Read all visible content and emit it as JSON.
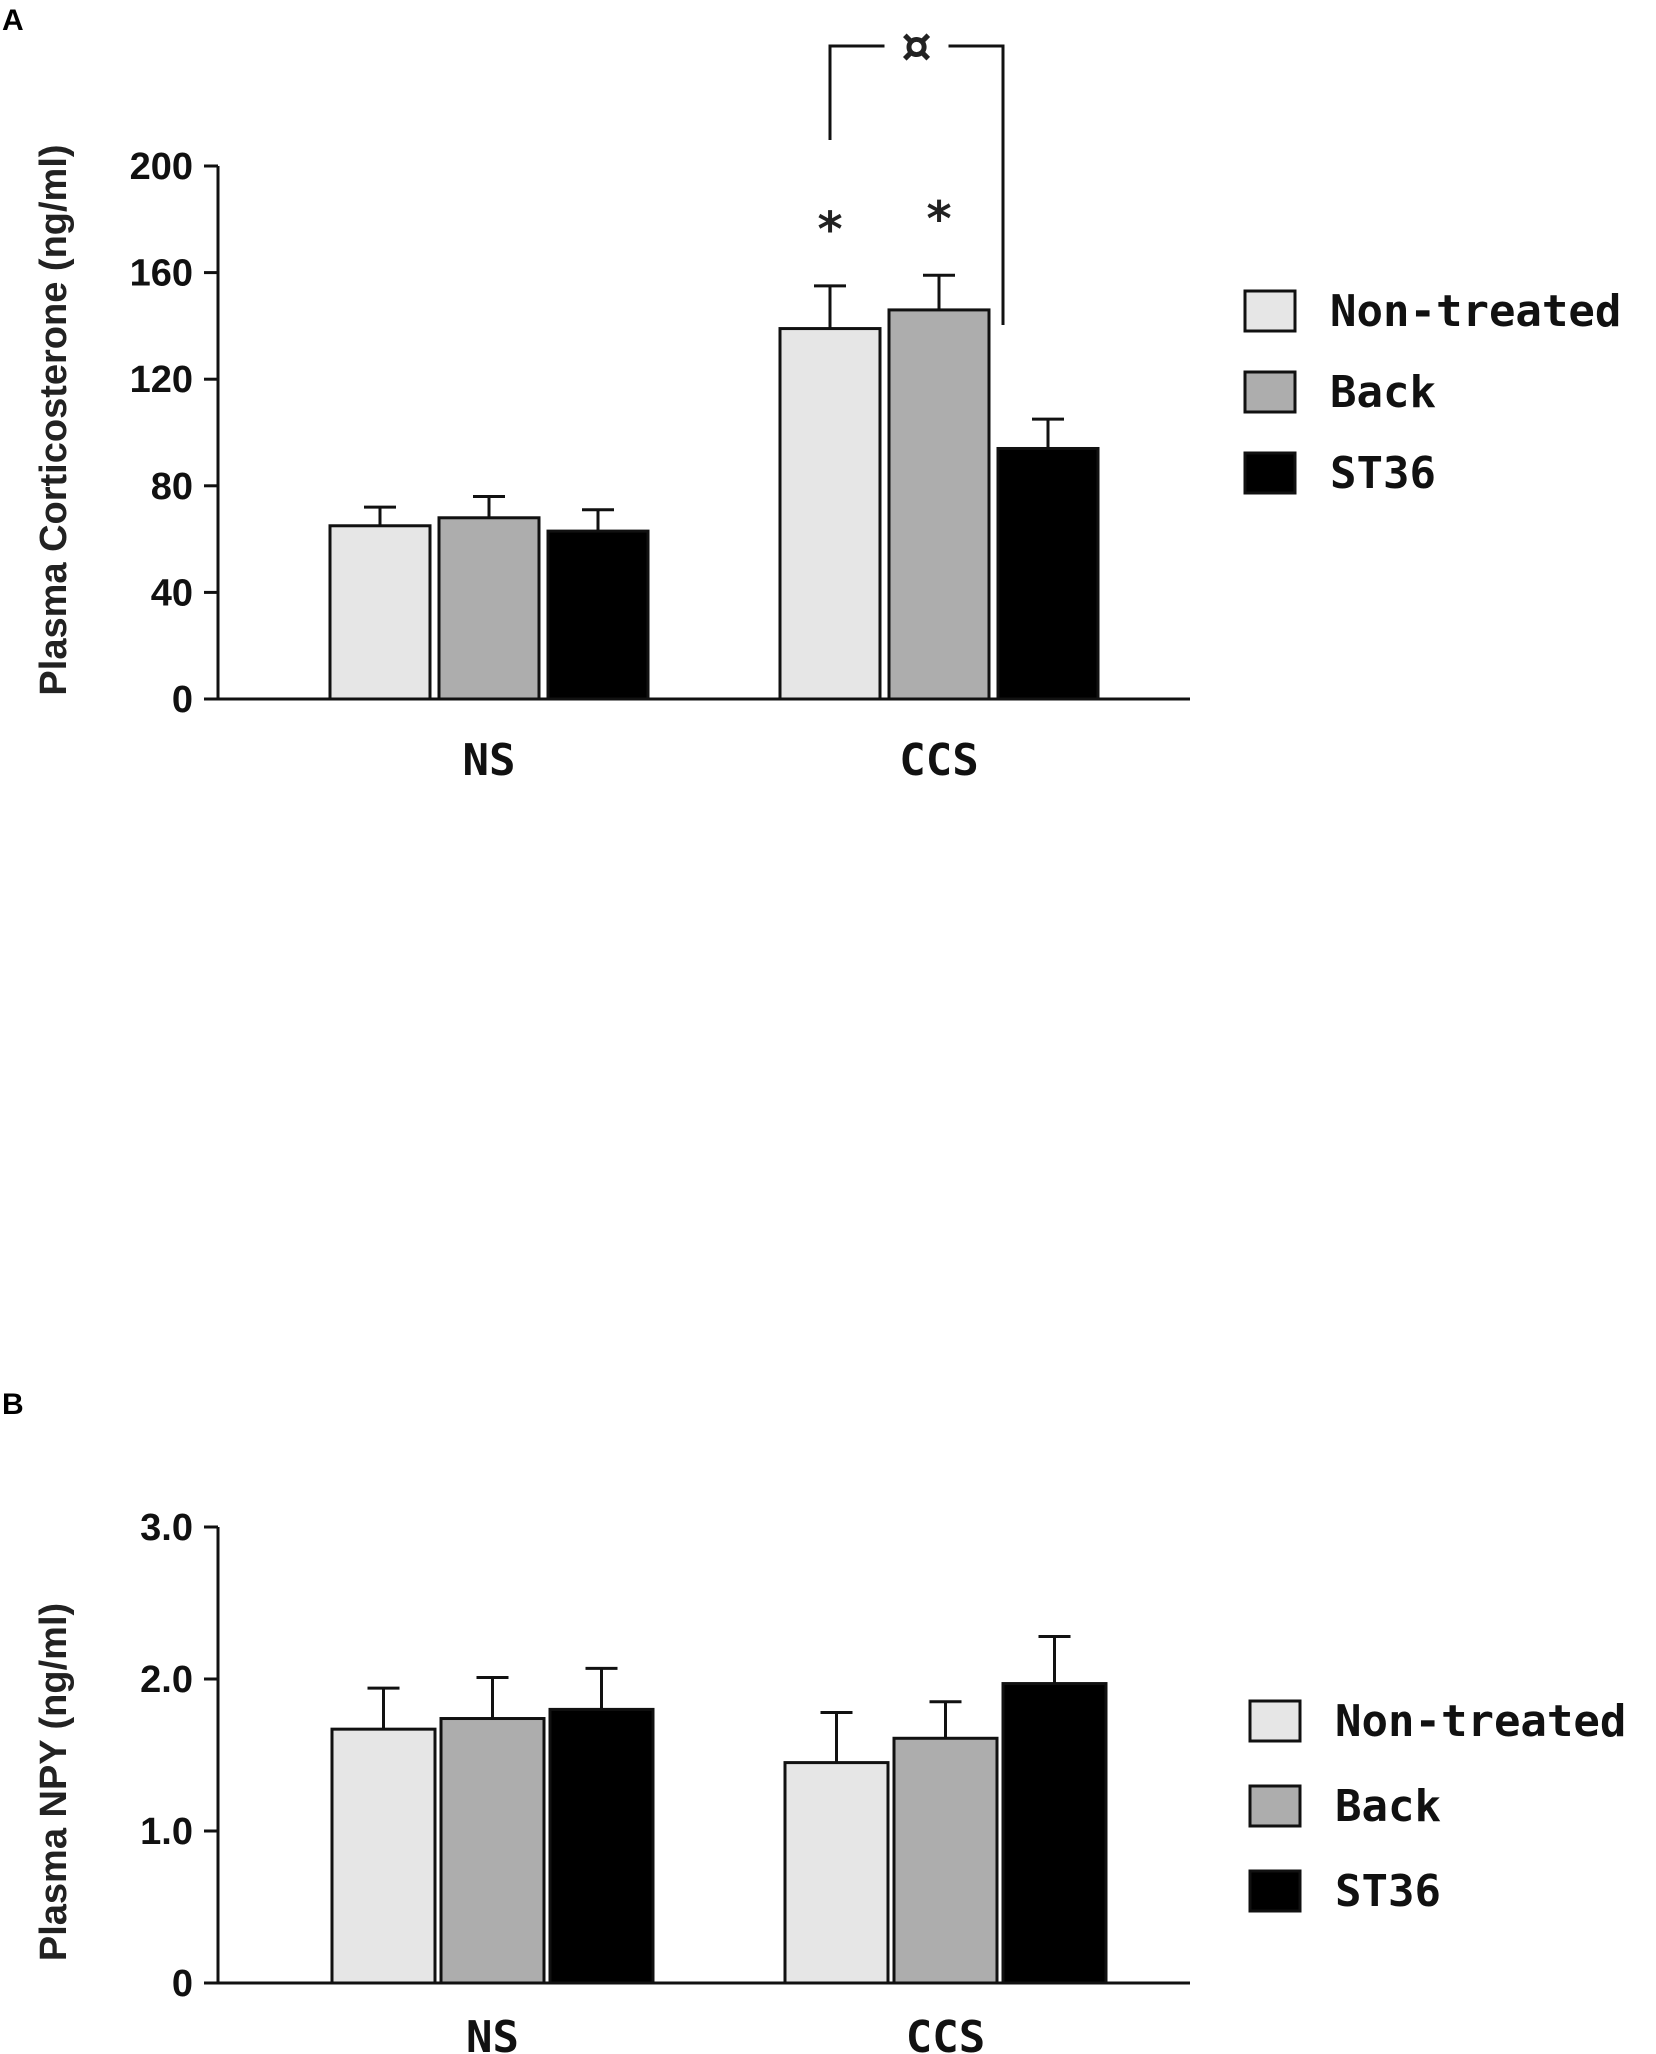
{
  "chart_data": [
    {
      "panel": "A",
      "type": "bar",
      "title": "",
      "xlabel": "",
      "ylabel": "Plasma Corticosterone (ng/ml)",
      "ylim": [
        0,
        200
      ],
      "yticks": [
        0,
        40,
        80,
        120,
        160,
        200
      ],
      "ytick_labels": [
        "0",
        "40",
        "80",
        "120",
        "160",
        "200"
      ],
      "categories": [
        "NS",
        "CCS"
      ],
      "legend_position": "right",
      "series": [
        {
          "name": "Non-treated",
          "color": "#e6e6e6",
          "values": [
            65,
            139
          ],
          "errors": [
            7,
            16
          ]
        },
        {
          "name": "Back",
          "color": "#adadad",
          "values": [
            68,
            146
          ],
          "errors": [
            8,
            13
          ]
        },
        {
          "name": "ST36",
          "color": "#000000",
          "values": [
            63,
            94
          ],
          "errors": [
            8,
            11
          ]
        }
      ],
      "annotations": {
        "significance": [
          {
            "category": "CCS",
            "series": "Non-treated",
            "symbol": "*"
          },
          {
            "category": "CCS",
            "series": "Back",
            "symbol": "*"
          }
        ],
        "bracket": {
          "from_series": "Non-treated",
          "to_series": "ST36",
          "category": "CCS",
          "symbol": "¤"
        }
      }
    },
    {
      "panel": "B",
      "type": "bar",
      "title": "",
      "xlabel": "",
      "ylabel": "Plasma NPY (ng/ml)",
      "ylim": [
        0,
        3.0
      ],
      "yticks": [
        0,
        1.0,
        2.0,
        3.0
      ],
      "ytick_labels": [
        "0",
        "1.0",
        "2.0",
        "3.0"
      ],
      "categories": [
        "NS",
        "CCS"
      ],
      "legend_position": "right",
      "series": [
        {
          "name": "Non-treated",
          "color": "#e6e6e6",
          "values": [
            1.67,
            1.45
          ],
          "errors": [
            0.27,
            0.33
          ]
        },
        {
          "name": "Back",
          "color": "#adadad",
          "values": [
            1.74,
            1.61
          ],
          "errors": [
            0.27,
            0.24
          ]
        },
        {
          "name": "ST36",
          "color": "#000000",
          "values": [
            1.8,
            1.97
          ],
          "errors": [
            0.27,
            0.31
          ]
        }
      ]
    }
  ]
}
